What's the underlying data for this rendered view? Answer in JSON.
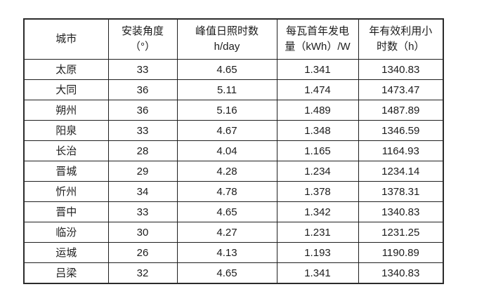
{
  "page": {
    "background_color": "#ffffff",
    "text_color": "#1c1c1c",
    "border_color": "#1f1f1f"
  },
  "table": {
    "columns": [
      {
        "id": "city",
        "label": "城市"
      },
      {
        "id": "install-angle-deg",
        "label": "安装角度\n（°）"
      },
      {
        "id": "peak-sun-hours",
        "label": "峰值日照时数\nh/day"
      },
      {
        "id": "first-year-generation-per-watt",
        "label": "每瓦首年发电\n量（kWh）/W"
      },
      {
        "id": "annual-effective-hours",
        "label": "年有效利用小\n时数（h）"
      }
    ],
    "rows": [
      [
        "太原",
        "33",
        "4.65",
        "1.341",
        "1340.83"
      ],
      [
        "大同",
        "36",
        "5.11",
        "1.474",
        "1473.47"
      ],
      [
        "朔州",
        "36",
        "5.16",
        "1.489",
        "1487.89"
      ],
      [
        "阳泉",
        "33",
        "4.67",
        "1.348",
        "1346.59"
      ],
      [
        "长治",
        "28",
        "4.04",
        "1.165",
        "1164.93"
      ],
      [
        "晋城",
        "29",
        "4.28",
        "1.234",
        "1234.14"
      ],
      [
        "忻州",
        "34",
        "4.78",
        "1.378",
        "1378.31"
      ],
      [
        "晋中",
        "33",
        "4.65",
        "1.342",
        "1340.83"
      ],
      [
        "临汾",
        "30",
        "4.27",
        "1.231",
        "1231.25"
      ],
      [
        "运城",
        "26",
        "4.13",
        "1.193",
        "1190.89"
      ],
      [
        "吕梁",
        "32",
        "4.65",
        "1.341",
        "1340.83"
      ]
    ]
  },
  "chart_data": {
    "type": "table",
    "columns": [
      "城市",
      "安装角度（°）",
      "峰值日照时数 h/day",
      "每瓦首年发电量（kWh）/W",
      "年有效利用小时数（h）"
    ],
    "rows": [
      [
        "太原",
        33,
        4.65,
        1.341,
        1340.83
      ],
      [
        "大同",
        36,
        5.11,
        1.474,
        1473.47
      ],
      [
        "朔州",
        36,
        5.16,
        1.489,
        1487.89
      ],
      [
        "阳泉",
        33,
        4.67,
        1.348,
        1346.59
      ],
      [
        "长治",
        28,
        4.04,
        1.165,
        1164.93
      ],
      [
        "晋城",
        29,
        4.28,
        1.234,
        1234.14
      ],
      [
        "忻州",
        34,
        4.78,
        1.378,
        1378.31
      ],
      [
        "晋中",
        33,
        4.65,
        1.342,
        1340.83
      ],
      [
        "临汾",
        30,
        4.27,
        1.231,
        1231.25
      ],
      [
        "运城",
        26,
        4.13,
        1.193,
        1190.89
      ],
      [
        "吕梁",
        32,
        4.65,
        1.341,
        1340.83
      ]
    ]
  }
}
